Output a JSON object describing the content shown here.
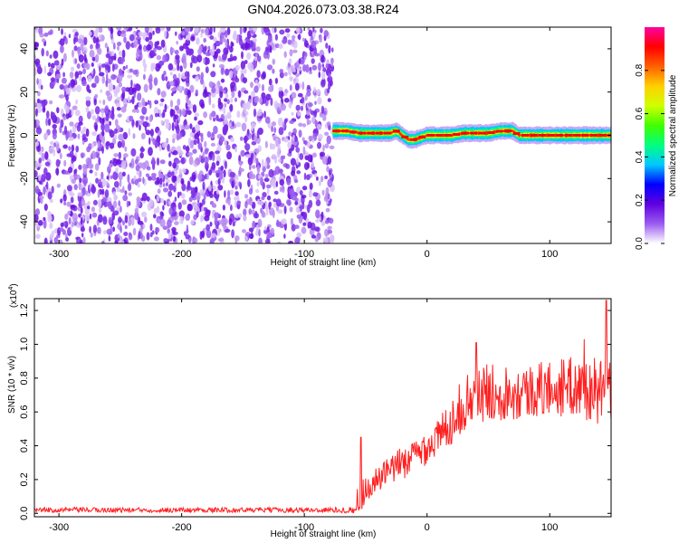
{
  "title": "GN04.2026.073.03.38.R24",
  "chart_data": [
    {
      "type": "heatmap",
      "name": "spectrogram",
      "xlabel": "Height of straight line (km)",
      "ylabel": "Frequency (Hz)",
      "xlim": [
        -320,
        150
      ],
      "ylim": [
        -50,
        50
      ],
      "xticks": [
        -300,
        -200,
        -100,
        0,
        100
      ],
      "yticks": [
        -40,
        -20,
        0,
        20,
        40
      ],
      "xtick_labels": [
        "-300",
        "-200",
        "-100",
        "0",
        "100"
      ],
      "ytick_labels": [
        "-40",
        "-20",
        "0",
        "20",
        "40"
      ],
      "noise_region_x": [
        -320,
        -77
      ],
      "signal_track": {
        "x": [
          -77,
          -65,
          -55,
          -40,
          -30,
          -25,
          -20,
          -15,
          -10,
          0,
          10,
          20,
          30,
          40,
          50,
          60,
          70,
          75,
          80,
          90,
          100,
          110,
          120,
          130,
          140,
          150
        ],
        "freq": [
          2,
          2,
          1,
          1,
          1,
          2,
          0,
          -2,
          -2,
          0,
          0,
          0,
          1,
          1,
          1,
          2,
          2,
          0,
          0,
          0,
          0,
          0,
          0,
          0,
          0,
          0
        ],
        "width_hz": 5
      },
      "colorbar": {
        "label": "Normalized spectral amplitude",
        "ticks": [
          0.0,
          0.2,
          0.4,
          0.6,
          0.8
        ],
        "tick_labels": [
          "0.0",
          "0.2",
          "0.4",
          "0.6",
          "0.8"
        ],
        "range": [
          0,
          1
        ],
        "colors": [
          "#ffffff",
          "#9a5cf0",
          "#6000e0",
          "#0000ff",
          "#00c8ff",
          "#00ff80",
          "#40ff00",
          "#d0ff00",
          "#ffd000",
          "#ff6000",
          "#ff0000",
          "#ff00a0"
        ]
      }
    },
    {
      "type": "line",
      "name": "snr",
      "xlabel": "Height of straight line (km)",
      "ylabel": "SNR (10 * v/v)",
      "y_multiplier": "(x10",
      "y_multiplier_exp": "4",
      "y_multiplier_close": ")",
      "xlim": [
        -320,
        150
      ],
      "ylim": [
        -0.02,
        1.27
      ],
      "xticks": [
        -300,
        -200,
        -100,
        0,
        100
      ],
      "yticks": [
        0.0,
        0.2,
        0.4,
        0.6,
        0.8,
        1.0,
        1.2
      ],
      "xtick_labels": [
        "-300",
        "-200",
        "-100",
        "0",
        "100"
      ],
      "ytick_labels": [
        "0.0",
        "0.2",
        "0.4",
        "0.6",
        "0.8",
        "1.0",
        "1.2"
      ],
      "color": "#ff2020",
      "envelope": {
        "x": [
          -320,
          -200,
          -80,
          -58,
          -56,
          -50,
          -40,
          -30,
          -20,
          -10,
          0,
          10,
          20,
          30,
          40,
          50,
          60,
          80,
          100,
          120,
          140,
          150
        ],
        "mean": [
          0.02,
          0.02,
          0.02,
          0.02,
          0.1,
          0.14,
          0.2,
          0.25,
          0.3,
          0.34,
          0.4,
          0.45,
          0.55,
          0.65,
          0.68,
          0.72,
          0.72,
          0.72,
          0.74,
          0.75,
          0.72,
          0.72
        ],
        "amp": [
          0.015,
          0.015,
          0.015,
          0.02,
          0.12,
          0.08,
          0.08,
          0.09,
          0.1,
          0.1,
          0.11,
          0.12,
          0.14,
          0.16,
          0.17,
          0.17,
          0.17,
          0.16,
          0.17,
          0.18,
          0.2,
          0.2
        ]
      },
      "peaks": [
        {
          "x": -54,
          "y": 0.45
        },
        {
          "x": 40,
          "y": 1.01
        },
        {
          "x": 128,
          "y": 1.03
        },
        {
          "x": 146,
          "y": 1.26
        }
      ]
    }
  ]
}
